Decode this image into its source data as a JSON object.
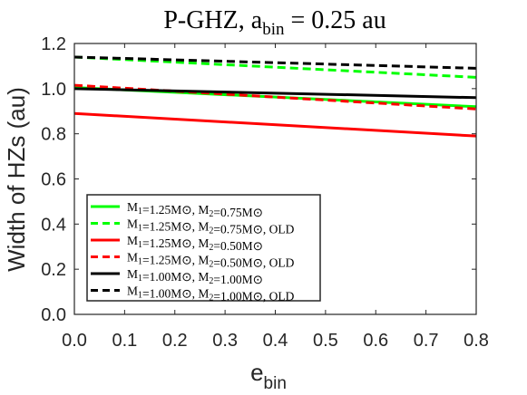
{
  "chart_data": {
    "type": "line",
    "title": {
      "main": "P-GHZ, a",
      "sub": "bin",
      "rest": " = 0.25 au"
    },
    "xlabel": {
      "main": "e",
      "sub": "bin"
    },
    "ylabel": "Width of HZs (au)",
    "xlim": [
      0,
      0.8
    ],
    "ylim": [
      0,
      1.2
    ],
    "xticks": [
      "0.0",
      "0.1",
      "0.2",
      "0.3",
      "0.4",
      "0.5",
      "0.6",
      "0.7",
      "0.8"
    ],
    "yticks": [
      "0.0",
      "0.2",
      "0.4",
      "0.6",
      "0.8",
      "1.0",
      "1.2"
    ],
    "grid": false,
    "legend_position": "lower-left",
    "series": [
      {
        "name": "M1=1.25M⊙, M2=0.75M⊙",
        "color": "#00ff00",
        "dashed": false,
        "x": [
          0.0,
          0.8
        ],
        "y": [
          1.005,
          0.92
        ]
      },
      {
        "name": "M1=1.25M⊙, M2=0.75M⊙, OLD",
        "color": "#00ff00",
        "dashed": true,
        "x": [
          0.0,
          0.8
        ],
        "y": [
          1.14,
          1.05
        ]
      },
      {
        "name": "M1=1.25M⊙, M2=0.50M⊙",
        "color": "#ff0000",
        "dashed": false,
        "x": [
          0.0,
          0.8
        ],
        "y": [
          0.89,
          0.79
        ]
      },
      {
        "name": "M1=1.25M⊙, M2=0.50M⊙, OLD",
        "color": "#ff0000",
        "dashed": true,
        "x": [
          0.0,
          0.8
        ],
        "y": [
          1.015,
          0.91
        ]
      },
      {
        "name": "M1=1.00M⊙, M2=1.00M⊙",
        "color": "#000000",
        "dashed": false,
        "x": [
          0.0,
          0.8
        ],
        "y": [
          1.0,
          0.96
        ]
      },
      {
        "name": "M1=1.00M⊙, M2=1.00M⊙, OLD",
        "color": "#000000",
        "dashed": true,
        "x": [
          0.0,
          0.8
        ],
        "y": [
          1.14,
          1.09
        ]
      }
    ]
  }
}
